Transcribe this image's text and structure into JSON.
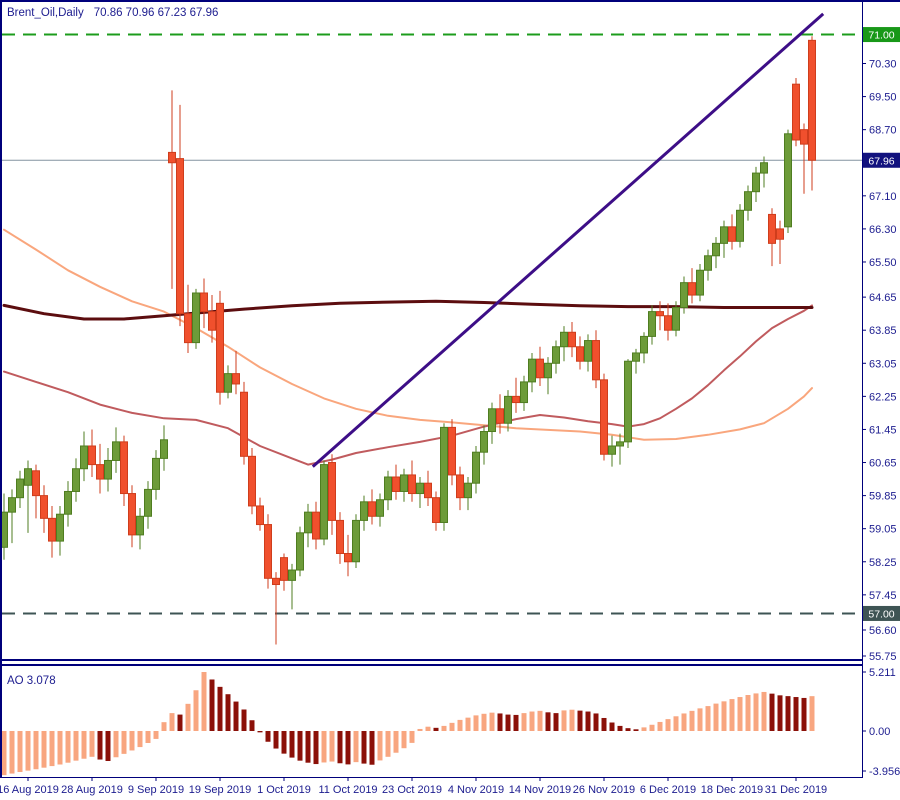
{
  "header": {
    "symbol_period": "Brent_Oil,Daily",
    "ohlc": "70.86 70.96 67.23 67.96"
  },
  "indicator_label": "AO 3.078",
  "colors": {
    "background": "#ffffff",
    "frame_navy": "#00007b",
    "text_navy": "#1c1c8f",
    "bull": "#6d9b39",
    "bull_border": "#4f7d20",
    "bear": "#f0502d",
    "bear_border": "#cf3d1c",
    "ma_fast": "#f9a67d",
    "ma_mid": "#c05b5e",
    "ma_slow": "#5c0d0f",
    "trendline": "#3d0e87",
    "level_71": "#1c9c1c",
    "level_57": "#3e5454",
    "last_price_line": "#8494a0",
    "badge_71_bg": "#189818",
    "badge_57_bg": "#3e5454",
    "badge_last_bg": "#12127e",
    "badge_text": "#ffffff",
    "ao_up": "#f8a680",
    "ao_down": "#8b1008"
  },
  "chart_data": {
    "type": "candlestick",
    "title": "Brent_Oil,Daily",
    "symbol": "Brent_Oil",
    "timeframe": "Daily",
    "last_ohlc": {
      "open": 70.86,
      "high": 70.96,
      "low": 67.23,
      "close": 67.96
    },
    "x_axis": {
      "labels": [
        "16 Aug 2019",
        "28 Aug 2019",
        "9 Sep 2019",
        "19 Sep 2019",
        "1 Oct 2019",
        "11 Oct 2019",
        "23 Oct 2019",
        "4 Nov 2019",
        "14 Nov 2019",
        "26 Nov 2019",
        "6 Dec 2019",
        "18 Dec 2019",
        "31 Dec 2019"
      ],
      "label_candle_indices": [
        3,
        11,
        19,
        27,
        35,
        43,
        51,
        59,
        67,
        75,
        83,
        91,
        99
      ]
    },
    "y_axis": {
      "ticks": [
        70.3,
        69.5,
        68.7,
        67.1,
        66.3,
        65.5,
        64.65,
        63.85,
        63.05,
        62.25,
        61.45,
        60.65,
        59.85,
        59.05,
        58.25,
        57.45,
        56.6,
        55.75
      ]
    },
    "levels": [
      {
        "price": 71.0,
        "label": "71.00",
        "style": "dashed",
        "role": "resistance"
      },
      {
        "price": 57.0,
        "label": "57.00",
        "style": "dashed",
        "role": "support"
      }
    ],
    "last_price": {
      "price": 67.96,
      "label": "67.96"
    },
    "candles": [
      [
        58.6,
        59.9,
        58.3,
        59.45
      ],
      [
        59.45,
        60.0,
        58.7,
        59.8
      ],
      [
        59.8,
        60.45,
        59.55,
        60.25
      ],
      [
        60.1,
        60.7,
        58.95,
        60.5
      ],
      [
        60.45,
        60.6,
        59.3,
        59.85
      ],
      [
        59.85,
        60.1,
        58.95,
        59.3
      ],
      [
        59.3,
        59.6,
        58.35,
        58.75
      ],
      [
        58.75,
        59.6,
        58.4,
        59.4
      ],
      [
        59.4,
        60.2,
        59.1,
        59.95
      ],
      [
        59.95,
        60.75,
        59.7,
        60.5
      ],
      [
        60.5,
        61.4,
        60.2,
        61.05
      ],
      [
        61.05,
        61.45,
        60.3,
        60.6
      ],
      [
        60.6,
        61.1,
        59.9,
        60.25
      ],
      [
        60.25,
        61.0,
        59.95,
        60.7
      ],
      [
        60.7,
        61.5,
        60.4,
        61.15
      ],
      [
        61.15,
        61.3,
        59.6,
        59.9
      ],
      [
        59.9,
        60.1,
        58.6,
        58.9
      ],
      [
        58.9,
        59.55,
        58.55,
        59.35
      ],
      [
        59.35,
        60.2,
        59.05,
        60.0
      ],
      [
        60.0,
        60.95,
        59.75,
        60.75
      ],
      [
        60.75,
        61.55,
        60.45,
        61.2
      ],
      [
        68.15,
        69.65,
        64.85,
        67.9
      ],
      [
        68.0,
        69.3,
        63.95,
        64.25
      ],
      [
        64.25,
        64.95,
        63.3,
        63.55
      ],
      [
        63.55,
        64.85,
        63.4,
        64.75
      ],
      [
        64.75,
        65.1,
        63.9,
        64.3
      ],
      [
        64.3,
        64.7,
        63.55,
        63.85
      ],
      [
        64.5,
        64.8,
        62.05,
        62.35
      ],
      [
        62.35,
        63.0,
        62.2,
        62.8
      ],
      [
        62.8,
        63.35,
        62.3,
        62.55
      ],
      [
        62.35,
        62.6,
        60.6,
        60.8
      ],
      [
        60.8,
        61.0,
        59.4,
        59.6
      ],
      [
        59.6,
        59.8,
        59.0,
        59.15
      ],
      [
        59.15,
        59.4,
        57.6,
        57.85
      ],
      [
        57.85,
        58.0,
        56.25,
        57.7
      ],
      [
        58.35,
        58.45,
        57.55,
        57.8
      ],
      [
        57.8,
        58.2,
        57.1,
        58.05
      ],
      [
        58.05,
        59.1,
        57.9,
        58.95
      ],
      [
        58.95,
        59.65,
        58.6,
        59.45
      ],
      [
        59.45,
        59.7,
        58.55,
        58.8
      ],
      [
        58.8,
        60.7,
        58.65,
        60.6
      ],
      [
        60.65,
        60.85,
        58.9,
        59.25
      ],
      [
        59.25,
        59.45,
        58.2,
        58.45
      ],
      [
        58.45,
        58.9,
        57.9,
        58.25
      ],
      [
        58.25,
        59.4,
        58.1,
        59.25
      ],
      [
        59.25,
        59.85,
        59.0,
        59.7
      ],
      [
        59.7,
        60.0,
        59.15,
        59.35
      ],
      [
        59.35,
        59.9,
        59.1,
        59.75
      ],
      [
        59.75,
        60.45,
        59.5,
        60.3
      ],
      [
        60.3,
        60.6,
        59.75,
        59.95
      ],
      [
        59.95,
        60.5,
        59.7,
        60.35
      ],
      [
        60.35,
        60.7,
        59.7,
        59.9
      ],
      [
        59.9,
        60.3,
        59.55,
        60.15
      ],
      [
        60.15,
        60.45,
        59.6,
        59.8
      ],
      [
        59.8,
        59.95,
        59.0,
        59.2
      ],
      [
        59.2,
        61.6,
        59.0,
        61.5
      ],
      [
        61.5,
        61.7,
        60.1,
        60.35
      ],
      [
        60.35,
        60.55,
        59.5,
        59.8
      ],
      [
        59.8,
        60.3,
        59.5,
        60.15
      ],
      [
        60.15,
        61.05,
        59.9,
        60.9
      ],
      [
        60.9,
        61.55,
        60.6,
        61.4
      ],
      [
        61.4,
        62.1,
        61.1,
        61.95
      ],
      [
        61.95,
        62.3,
        61.35,
        61.6
      ],
      [
        61.6,
        62.4,
        61.4,
        62.25
      ],
      [
        62.25,
        62.7,
        61.85,
        62.1
      ],
      [
        62.1,
        62.75,
        61.9,
        62.6
      ],
      [
        62.6,
        63.3,
        62.35,
        63.15
      ],
      [
        63.15,
        63.45,
        62.5,
        62.7
      ],
      [
        62.7,
        63.2,
        62.3,
        63.05
      ],
      [
        63.05,
        63.6,
        62.8,
        63.45
      ],
      [
        63.45,
        63.95,
        63.1,
        63.8
      ],
      [
        63.8,
        64.05,
        63.2,
        63.45
      ],
      [
        63.45,
        63.7,
        62.9,
        63.1
      ],
      [
        63.1,
        63.75,
        62.85,
        63.6
      ],
      [
        63.6,
        63.85,
        62.45,
        62.65
      ],
      [
        62.65,
        62.8,
        60.7,
        60.85
      ],
      [
        60.85,
        61.3,
        60.55,
        61.05
      ],
      [
        61.05,
        61.35,
        60.6,
        61.15
      ],
      [
        61.15,
        63.15,
        61.0,
        63.1
      ],
      [
        63.1,
        63.4,
        62.8,
        63.3
      ],
      [
        63.3,
        63.8,
        63.05,
        63.7
      ],
      [
        63.7,
        64.45,
        63.5,
        64.3
      ],
      [
        64.3,
        64.55,
        63.85,
        64.2
      ],
      [
        64.2,
        64.5,
        63.6,
        63.85
      ],
      [
        63.85,
        64.55,
        63.7,
        64.4
      ],
      [
        64.4,
        65.15,
        64.25,
        65.0
      ],
      [
        65.0,
        65.35,
        64.5,
        64.7
      ],
      [
        64.7,
        65.45,
        64.55,
        65.3
      ],
      [
        65.3,
        65.8,
        65.05,
        65.65
      ],
      [
        65.65,
        66.1,
        65.35,
        65.95
      ],
      [
        65.95,
        66.5,
        65.6,
        66.35
      ],
      [
        66.35,
        66.65,
        65.8,
        66.0
      ],
      [
        66.0,
        66.9,
        65.85,
        66.75
      ],
      [
        66.75,
        67.35,
        66.5,
        67.2
      ],
      [
        67.2,
        67.8,
        66.95,
        67.65
      ],
      [
        67.65,
        68.05,
        67.3,
        67.9
      ],
      [
        66.65,
        66.8,
        65.4,
        65.95
      ],
      [
        66.3,
        66.5,
        65.45,
        66.05
      ],
      [
        66.35,
        68.7,
        66.2,
        68.6
      ],
      [
        69.8,
        69.95,
        68.3,
        68.45
      ],
      [
        68.7,
        68.85,
        67.15,
        68.35
      ],
      [
        70.86,
        70.96,
        67.23,
        67.96
      ]
    ],
    "moving_averages": [
      {
        "name": "fast-salmon",
        "points": [
          [
            0,
            66.28
          ],
          [
            4,
            65.8
          ],
          [
            8,
            65.3
          ],
          [
            12,
            64.9
          ],
          [
            16,
            64.55
          ],
          [
            20,
            64.3
          ],
          [
            24,
            63.9
          ],
          [
            28,
            63.45
          ],
          [
            32,
            62.95
          ],
          [
            36,
            62.55
          ],
          [
            40,
            62.2
          ],
          [
            44,
            61.95
          ],
          [
            48,
            61.78
          ],
          [
            52,
            61.68
          ],
          [
            56,
            61.62
          ],
          [
            60,
            61.55
          ],
          [
            64,
            61.48
          ],
          [
            68,
            61.44
          ],
          [
            72,
            61.4
          ],
          [
            76,
            61.32
          ],
          [
            80,
            61.2
          ],
          [
            84,
            61.22
          ],
          [
            88,
            61.32
          ],
          [
            92,
            61.45
          ],
          [
            95,
            61.6
          ],
          [
            98,
            61.95
          ],
          [
            100,
            62.25
          ],
          [
            101,
            62.45
          ]
        ]
      },
      {
        "name": "medium-indianred",
        "points": [
          [
            0,
            62.85
          ],
          [
            4,
            62.6
          ],
          [
            8,
            62.35
          ],
          [
            12,
            62.05
          ],
          [
            16,
            61.85
          ],
          [
            20,
            61.72
          ],
          [
            24,
            61.68
          ],
          [
            28,
            61.48
          ],
          [
            32,
            61.05
          ],
          [
            36,
            60.75
          ],
          [
            38,
            60.6
          ],
          [
            41,
            60.72
          ],
          [
            44,
            60.88
          ],
          [
            48,
            61.02
          ],
          [
            52,
            61.15
          ],
          [
            56,
            61.3
          ],
          [
            60,
            61.52
          ],
          [
            64,
            61.7
          ],
          [
            67,
            61.8
          ],
          [
            70,
            61.74
          ],
          [
            73,
            61.65
          ],
          [
            76,
            61.58
          ],
          [
            78,
            61.52
          ],
          [
            80,
            61.58
          ],
          [
            82,
            61.72
          ],
          [
            84,
            61.95
          ],
          [
            86,
            62.2
          ],
          [
            88,
            62.52
          ],
          [
            90,
            62.88
          ],
          [
            92,
            63.22
          ],
          [
            94,
            63.58
          ],
          [
            96,
            63.9
          ],
          [
            98,
            64.12
          ],
          [
            100,
            64.32
          ],
          [
            101,
            64.45
          ]
        ]
      },
      {
        "name": "slow-maroon",
        "points": [
          [
            0,
            64.45
          ],
          [
            5,
            64.25
          ],
          [
            10,
            64.12
          ],
          [
            15,
            64.12
          ],
          [
            20,
            64.2
          ],
          [
            25,
            64.28
          ],
          [
            30,
            64.36
          ],
          [
            36,
            64.44
          ],
          [
            42,
            64.5
          ],
          [
            48,
            64.53
          ],
          [
            54,
            64.55
          ],
          [
            60,
            64.52
          ],
          [
            66,
            64.48
          ],
          [
            72,
            64.44
          ],
          [
            78,
            64.42
          ],
          [
            84,
            64.42
          ],
          [
            90,
            64.4
          ],
          [
            96,
            64.4
          ],
          [
            101,
            64.4
          ]
        ]
      }
    ],
    "trendline": {
      "from": [
        38.6,
        60.55
      ],
      "to": [
        102.4,
        71.5
      ]
    },
    "indicator": {
      "name": "AO",
      "display": "AO 3.078",
      "last": 3.078,
      "scale_labels": [
        {
          "label": "5.211",
          "value": 5.211
        },
        {
          "label": "0.00",
          "value": 0
        },
        {
          "label": "-3.956",
          "value": -3.956
        }
      ],
      "values": [
        -3.9,
        -3.76,
        -3.62,
        -3.5,
        -3.38,
        -3.24,
        -3.1,
        -2.96,
        -2.8,
        -2.62,
        -2.45,
        -2.28,
        -2.52,
        -2.65,
        -2.32,
        -2.02,
        -1.72,
        -1.42,
        -1.06,
        -0.7,
        0.78,
        1.58,
        1.45,
        2.4,
        3.6,
        5.211,
        4.55,
        3.9,
        3.25,
        2.6,
        1.9,
        0.95,
        -0.12,
        -0.95,
        -1.55,
        -2.0,
        -2.35,
        -2.62,
        -2.8,
        -2.92,
        -2.78,
        -2.7,
        -2.85,
        -2.95,
        -2.75,
        -2.88,
        -2.98,
        -2.6,
        -2.28,
        -1.92,
        -1.52,
        -1.05,
        0.18,
        0.38,
        0.28,
        0.45,
        0.72,
        0.98,
        1.18,
        1.38,
        1.52,
        1.62,
        1.55,
        1.45,
        1.42,
        1.58,
        1.72,
        1.78,
        1.65,
        1.58,
        1.82,
        1.88,
        1.8,
        1.72,
        1.55,
        1.15,
        0.75,
        0.45,
        0.25,
        0.15,
        0.32,
        0.55,
        0.8,
        1.05,
        1.3,
        1.55,
        1.78,
        2.0,
        2.2,
        2.42,
        2.62,
        2.82,
        3.0,
        3.18,
        3.32,
        3.45,
        3.3,
        3.15,
        3.08,
        3.0,
        2.92,
        3.078
      ]
    }
  }
}
